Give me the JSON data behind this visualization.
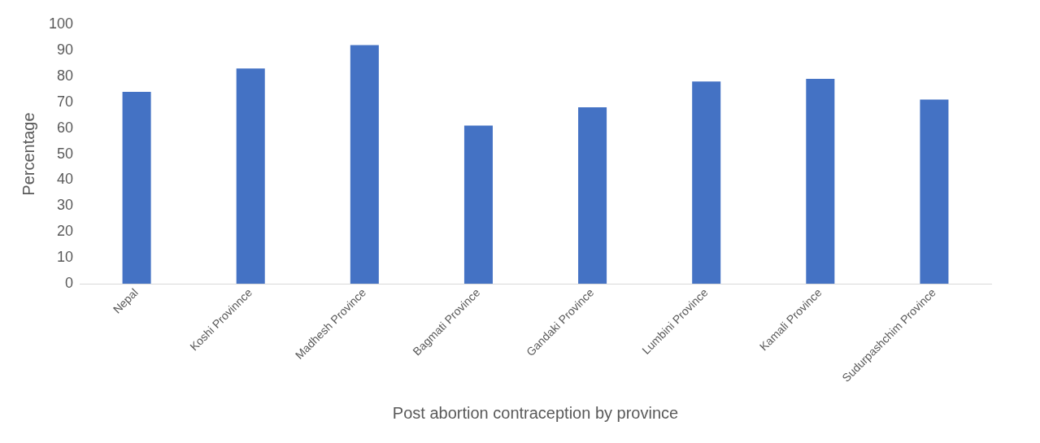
{
  "chart_data": {
    "type": "bar",
    "xlabel": "Post abortion contraception by province",
    "ylabel": "Percentage",
    "categories": [
      "Nepal",
      "Koshi Provinnce",
      "Madhesh Province",
      "Bagmati Province",
      "Gandaki Province",
      "Lumbini Province",
      "Kamali Province",
      "Sudurpashchim Province"
    ],
    "values": [
      74,
      83,
      92,
      61,
      68,
      78,
      79,
      71
    ],
    "color": "#4472c4",
    "ylim": [
      0,
      100
    ],
    "yticks": [
      0,
      10,
      20,
      30,
      40,
      50,
      60,
      70,
      80,
      90,
      100
    ],
    "grid": false,
    "legend": false
  }
}
